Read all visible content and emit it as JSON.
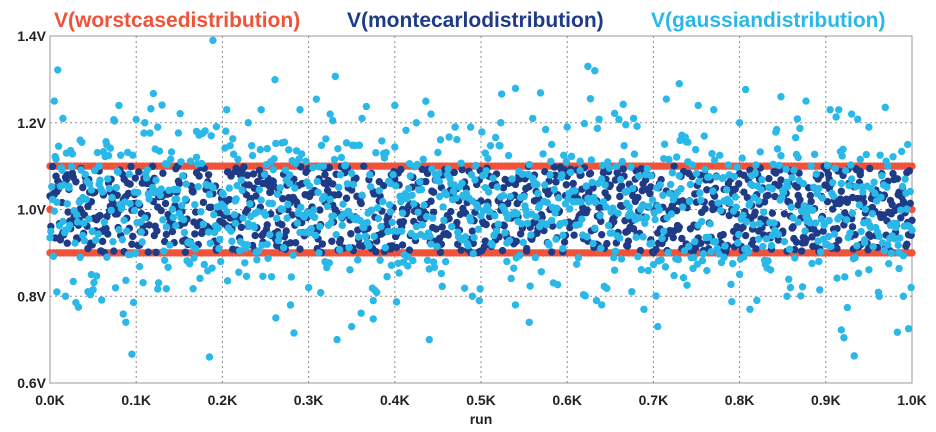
{
  "chart_data": {
    "type": "scatter",
    "title": "",
    "xlabel": "run",
    "ylabel": "",
    "xlim": [
      0,
      1000
    ],
    "ylim": [
      0.6,
      1.4
    ],
    "grid": true,
    "legend_position": "top",
    "x_ticks": [
      {
        "value": 0,
        "label": "0.0K"
      },
      {
        "value": 100,
        "label": "0.1K"
      },
      {
        "value": 200,
        "label": "0.2K"
      },
      {
        "value": 300,
        "label": "0.3K"
      },
      {
        "value": 400,
        "label": "0.4K"
      },
      {
        "value": 500,
        "label": "0.5K"
      },
      {
        "value": 600,
        "label": "0.6K"
      },
      {
        "value": 700,
        "label": "0.7K"
      },
      {
        "value": 800,
        "label": "0.8K"
      },
      {
        "value": 900,
        "label": "0.9K"
      },
      {
        "value": 1000,
        "label": "1.0K"
      }
    ],
    "y_ticks": [
      {
        "value": 0.6,
        "label": "0.6V"
      },
      {
        "value": 0.8,
        "label": "0.8V"
      },
      {
        "value": 1.0,
        "label": "1.0V"
      },
      {
        "value": 1.2,
        "label": "1.2V"
      },
      {
        "value": 1.4,
        "label": "1.4V"
      }
    ],
    "series": [
      {
        "name": "V(worstcasedistribution)",
        "color": "#f0523a",
        "description_of_values": "runs 0-1000, values at 0.9 V and 1.1 V (a few points at 1.0 V)",
        "levels": [
          0.9,
          1.1
        ],
        "run_range": [
          0,
          1000
        ],
        "points": [
          [
            0,
            1.0
          ],
          [
            1000,
            1.0
          ]
        ]
      },
      {
        "name": "V(montecarlodistribution)",
        "color": "#1f3b86",
        "run_range": [
          0,
          1000
        ],
        "value_range": [
          0.9,
          1.1
        ],
        "points": [
          [
            5,
            1.05
          ],
          [
            12,
            0.93
          ],
          [
            20,
            1.08
          ],
          [
            28,
            0.97
          ],
          [
            35,
            1.02
          ],
          [
            44,
            0.91
          ],
          [
            52,
            1.09
          ],
          [
            61,
            0.95
          ],
          [
            70,
            1.04
          ],
          [
            78,
            0.99
          ],
          [
            86,
            1.07
          ],
          [
            95,
            0.92
          ],
          [
            104,
            1.01
          ],
          [
            113,
            1.06
          ],
          [
            121,
            0.94
          ],
          [
            130,
            1.03
          ],
          [
            139,
            0.98
          ],
          [
            148,
            1.1
          ],
          [
            157,
            0.93
          ],
          [
            166,
            1.05
          ],
          [
            175,
            0.97
          ],
          [
            184,
            1.08
          ],
          [
            193,
            0.91
          ],
          [
            202,
            1.02
          ],
          [
            211,
            0.96
          ],
          [
            220,
            1.09
          ],
          [
            229,
            1.0
          ],
          [
            238,
            0.94
          ],
          [
            247,
            1.06
          ],
          [
            256,
            0.99
          ],
          [
            265,
            1.04
          ],
          [
            274,
            0.92
          ],
          [
            283,
            1.07
          ],
          [
            292,
            0.97
          ],
          [
            301,
            1.03
          ],
          [
            310,
            0.95
          ],
          [
            319,
            1.08
          ],
          [
            328,
            1.01
          ],
          [
            337,
            0.93
          ],
          [
            346,
            1.05
          ],
          [
            355,
            0.98
          ],
          [
            364,
            1.1
          ],
          [
            373,
            0.91
          ],
          [
            382,
            1.02
          ],
          [
            391,
            0.96
          ],
          [
            400,
            1.07
          ],
          [
            409,
            1.0
          ],
          [
            418,
            0.94
          ],
          [
            427,
            1.06
          ],
          [
            436,
            0.99
          ],
          [
            445,
            1.04
          ],
          [
            454,
            0.92
          ],
          [
            463,
            1.08
          ],
          [
            472,
            0.97
          ],
          [
            481,
            1.03
          ],
          [
            490,
            0.95
          ],
          [
            499,
            1.09
          ],
          [
            508,
            1.01
          ],
          [
            517,
            0.93
          ],
          [
            526,
            1.05
          ],
          [
            535,
            0.98
          ],
          [
            544,
            1.07
          ],
          [
            553,
            0.91
          ],
          [
            562,
            1.02
          ],
          [
            571,
            0.96
          ],
          [
            580,
            1.08
          ],
          [
            589,
            1.0
          ],
          [
            598,
            0.94
          ],
          [
            607,
            1.06
          ],
          [
            616,
            0.99
          ],
          [
            625,
            1.04
          ],
          [
            634,
            0.92
          ],
          [
            643,
            1.09
          ],
          [
            652,
            0.97
          ],
          [
            661,
            1.03
          ],
          [
            670,
            0.95
          ],
          [
            679,
            1.07
          ],
          [
            688,
            1.01
          ],
          [
            697,
            0.93
          ],
          [
            706,
            1.05
          ],
          [
            715,
            0.98
          ],
          [
            724,
            1.1
          ],
          [
            733,
            0.91
          ],
          [
            742,
            1.02
          ],
          [
            751,
            0.96
          ],
          [
            760,
            1.08
          ],
          [
            769,
            1.0
          ],
          [
            778,
            0.94
          ],
          [
            787,
            1.06
          ],
          [
            796,
            0.99
          ],
          [
            805,
            1.04
          ],
          [
            814,
            0.92
          ],
          [
            823,
            1.07
          ],
          [
            832,
            0.97
          ],
          [
            841,
            1.03
          ],
          [
            850,
            0.95
          ],
          [
            859,
            1.09
          ],
          [
            868,
            1.01
          ],
          [
            877,
            0.93
          ],
          [
            886,
            1.05
          ],
          [
            895,
            0.98
          ],
          [
            904,
            1.07
          ],
          [
            913,
            0.91
          ],
          [
            922,
            1.02
          ],
          [
            931,
            0.96
          ],
          [
            940,
            1.08
          ],
          [
            949,
            1.0
          ],
          [
            958,
            0.94
          ],
          [
            967,
            1.06
          ],
          [
            976,
            0.99
          ],
          [
            985,
            1.04
          ],
          [
            994,
            0.92
          ]
        ]
      },
      {
        "name": "V(gaussiandistribution)",
        "color": "#2ab8e8",
        "run_range": [
          0,
          1000
        ],
        "value_range": [
          0.65,
          1.39
        ],
        "points": [
          [
            5,
            1.25
          ],
          [
            15,
            1.21
          ],
          [
            8,
            0.81
          ],
          [
            18,
            0.8
          ],
          [
            35,
            1.16
          ],
          [
            48,
            0.85
          ],
          [
            80,
            1.24
          ],
          [
            88,
            0.74
          ],
          [
            110,
            1.2
          ],
          [
            125,
            1.19
          ],
          [
            170,
            1.18
          ],
          [
            187,
            1.17
          ],
          [
            189,
            1.39
          ],
          [
            185,
            0.66
          ],
          [
            205,
            1.23
          ],
          [
            230,
            1.2
          ],
          [
            245,
            1.23
          ],
          [
            262,
            0.75
          ],
          [
            290,
            1.23
          ],
          [
            300,
            0.82
          ],
          [
            325,
            1.22
          ],
          [
            350,
            0.73
          ],
          [
            362,
            1.21
          ],
          [
            375,
            0.79
          ],
          [
            400,
            1.24
          ],
          [
            425,
            1.2
          ],
          [
            440,
            0.7
          ],
          [
            442,
            1.22
          ],
          [
            470,
            1.19
          ],
          [
            488,
            1.19
          ],
          [
            490,
            0.8
          ],
          [
            523,
            1.2
          ],
          [
            540,
            0.78
          ],
          [
            556,
            0.74
          ],
          [
            560,
            1.21
          ],
          [
            582,
            1.15
          ],
          [
            624,
            1.33
          ],
          [
            632,
            1.32
          ],
          [
            640,
            0.78
          ],
          [
            677,
            1.21
          ],
          [
            689,
            0.77
          ],
          [
            705,
            0.73
          ],
          [
            730,
            1.29
          ],
          [
            752,
            1.24
          ],
          [
            770,
            1.23
          ],
          [
            800,
            1.2
          ],
          [
            812,
            0.77
          ],
          [
            848,
            1.26
          ],
          [
            855,
            0.8
          ],
          [
            877,
            1.25
          ],
          [
            905,
            1.23
          ],
          [
            930,
            1.22
          ],
          [
            950,
            1.19
          ],
          [
            962,
            0.8
          ],
          [
            990,
            0.8
          ],
          [
            995,
            1.15
          ],
          [
            22,
            1.05
          ],
          [
            38,
            0.94
          ],
          [
            57,
            1.1
          ],
          [
            66,
            0.89
          ],
          [
            98,
            1.04
          ],
          [
            135,
            0.96
          ],
          [
            152,
            1.11
          ],
          [
            198,
            0.88
          ],
          [
            215,
            1.02
          ],
          [
            252,
            0.92
          ],
          [
            278,
            1.08
          ],
          [
            312,
            0.9
          ],
          [
            338,
            1.12
          ],
          [
            368,
            0.97
          ],
          [
            395,
            1.06
          ],
          [
            415,
            0.87
          ],
          [
            452,
            1.03
          ],
          [
            478,
            0.93
          ],
          [
            505,
            1.13
          ],
          [
            530,
            0.88
          ],
          [
            568,
            1.01
          ],
          [
            595,
            0.91
          ],
          [
            615,
            1.09
          ],
          [
            655,
            0.86
          ],
          [
            668,
            1.04
          ],
          [
            712,
            0.95
          ],
          [
            740,
            1.11
          ],
          [
            782,
            0.89
          ],
          [
            822,
            1.02
          ],
          [
            838,
            0.94
          ],
          [
            868,
            1.12
          ],
          [
            892,
            0.88
          ],
          [
            918,
            1.06
          ],
          [
            945,
            0.93
          ],
          [
            972,
            1.1
          ],
          [
            985,
            0.9
          ]
        ]
      }
    ]
  }
}
